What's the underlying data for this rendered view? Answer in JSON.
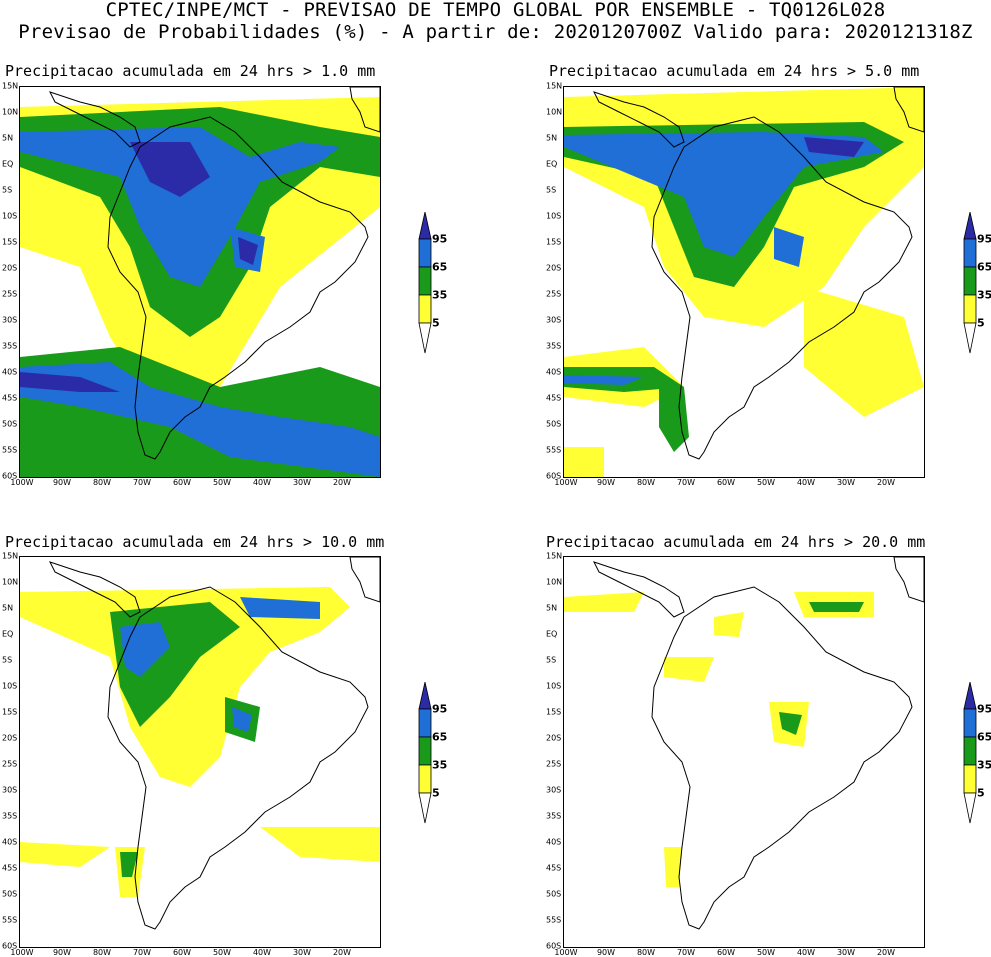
{
  "header": {
    "line1": "CPTEC/INPE/MCT - PREVISAO DE TEMPO GLOBAL POR ENSEMBLE - TQ0126L028",
    "line2": "Previsao de Probabilidades (%) -  A partir de: 2020120700Z  Valido para: 2020121318Z"
  },
  "panels": [
    {
      "title": "Precipitacao acumulada em 24 hrs > 1.0 mm"
    },
    {
      "title": "Precipitacao acumulada em 24 hrs > 5.0 mm"
    },
    {
      "title": "Precipitacao acumulada em 24 hrs > 10.0 mm"
    },
    {
      "title": "Precipitacao acumulada em 24 hrs > 20.0 mm"
    }
  ],
  "axes": {
    "lat_labels": [
      "15N",
      "10N",
      "5N",
      "EQ",
      "5S",
      "10S",
      "15S",
      "20S",
      "25S",
      "30S",
      "35S",
      "40S",
      "45S",
      "50S",
      "55S",
      "60S"
    ],
    "lon_labels": [
      "100W",
      "90W",
      "80W",
      "70W",
      "60W",
      "50W",
      "40W",
      "30W",
      "20W"
    ]
  },
  "colorbar": {
    "labels": [
      "95",
      "65",
      "35",
      "5"
    ],
    "colors": {
      "yellow": "#ffff33",
      "green": "#1a9a1a",
      "blue": "#1f6fd6",
      "purple": "#2b2ba8"
    }
  }
}
